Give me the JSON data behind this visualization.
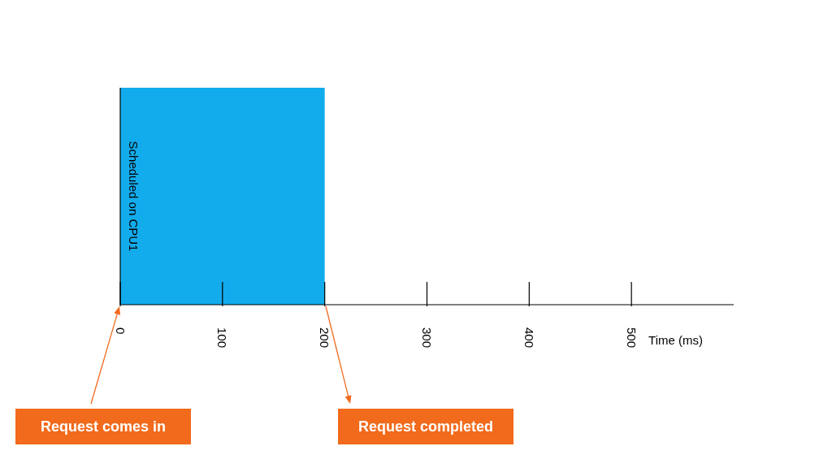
{
  "chart_data": {
    "type": "bar",
    "orientation": "horizontal",
    "categories": [
      null
    ],
    "values": [
      200
    ],
    "base": [
      0
    ],
    "color": "#12abec",
    "xlim": [
      0,
      600
    ],
    "xticks": [
      0,
      100,
      200,
      300,
      400,
      500
    ],
    "xlabel": "Time (ms)",
    "ylabel": "Scheduled on CPU1",
    "annotations": [
      "Request comes in",
      "Request completed"
    ]
  }
}
